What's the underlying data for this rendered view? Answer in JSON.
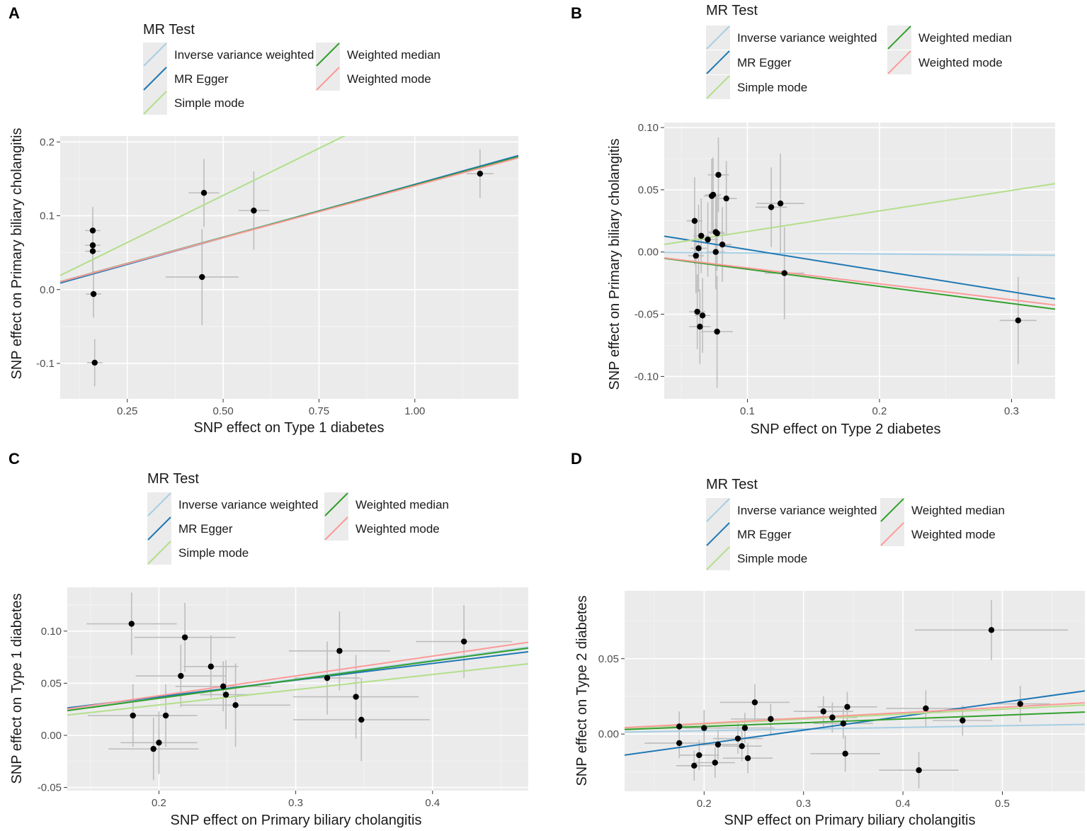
{
  "figure": {
    "legend": {
      "title": "MR Test",
      "entries": [
        {
          "name": "Inverse variance weighted",
          "color": "#a6cee3"
        },
        {
          "name": "MR Egger",
          "color": "#1f78b4"
        },
        {
          "name": "Simple mode",
          "color": "#b2df8a"
        },
        {
          "name": "Weighted median",
          "color": "#33a02c"
        },
        {
          "name": "Weighted mode",
          "color": "#fb9a99"
        }
      ]
    },
    "colors": {
      "panel_bg": "#ebebeb",
      "grid": "#ffffff",
      "point": "#000000",
      "errorbar": "#bdbdbd"
    }
  },
  "chart_data": [
    {
      "panel": "A",
      "type": "scatter",
      "xlabel": "SNP effect on  Type 1 diabetes",
      "ylabel": "SNP effect on Primary biliary cholangitis",
      "xlim": [
        0.075,
        1.27
      ],
      "ylim": [
        -0.148,
        0.208
      ],
      "xticks": [
        0.25,
        0.5,
        0.75,
        1.0
      ],
      "xtick_labels": [
        "0.25",
        "0.50",
        "0.75",
        "1.00"
      ],
      "yticks": [
        -0.1,
        0.0,
        0.1,
        0.2
      ],
      "ytick_labels": [
        "-0.1",
        "0.0",
        "0.1",
        "0.2"
      ],
      "points": [
        {
          "x": 0.16,
          "y": 0.08,
          "xse": 0.02,
          "yse": 0.032
        },
        {
          "x": 0.16,
          "y": 0.06,
          "xse": 0.02,
          "yse": 0.032
        },
        {
          "x": 0.16,
          "y": 0.052,
          "xse": 0.02,
          "yse": 0.032
        },
        {
          "x": 0.162,
          "y": -0.006,
          "xse": 0.02,
          "yse": 0.032
        },
        {
          "x": 0.165,
          "y": -0.099,
          "xse": 0.02,
          "yse": 0.032
        },
        {
          "x": 0.45,
          "y": 0.131,
          "xse": 0.04,
          "yse": 0.046
        },
        {
          "x": 0.445,
          "y": 0.017,
          "xse": 0.095,
          "yse": 0.065
        },
        {
          "x": 0.58,
          "y": 0.107,
          "xse": 0.04,
          "yse": 0.053
        },
        {
          "x": 1.17,
          "y": 0.157,
          "xse": 0.035,
          "yse": 0.033
        }
      ],
      "lines": [
        {
          "name": "Inverse variance weighted",
          "slope": 0.1425,
          "intercept": 0.0
        },
        {
          "name": "MR Egger",
          "slope": 0.1445,
          "intercept": -0.002
        },
        {
          "name": "Simple mode",
          "slope": 0.255,
          "intercept": 0.0
        },
        {
          "name": "Weighted median",
          "slope": 0.1415,
          "intercept": 0.0
        },
        {
          "name": "Weighted mode",
          "slope": 0.1405,
          "intercept": 0.0
        }
      ]
    },
    {
      "panel": "B",
      "type": "scatter",
      "xlabel": "SNP effect on  Type 2 diabetes",
      "ylabel": "SNP effect on Primary biliary cholangitis",
      "xlim": [
        0.037,
        0.333
      ],
      "ylim": [
        -0.118,
        0.104
      ],
      "xticks": [
        0.1,
        0.2,
        0.3
      ],
      "xtick_labels": [
        "0.1",
        "0.2",
        "0.3"
      ],
      "yticks": [
        -0.1,
        -0.05,
        0.0,
        0.05,
        0.1
      ],
      "ytick_labels": [
        "-0.10",
        "-0.05",
        "0.00",
        "0.05",
        "0.10"
      ],
      "points": [
        {
          "x": 0.06,
          "y": 0.025,
          "xse": 0.006,
          "yse": 0.035
        },
        {
          "x": 0.061,
          "y": -0.003,
          "xse": 0.006,
          "yse": 0.03
        },
        {
          "x": 0.062,
          "y": -0.048,
          "xse": 0.006,
          "yse": 0.03
        },
        {
          "x": 0.063,
          "y": 0.003,
          "xse": 0.006,
          "yse": 0.035
        },
        {
          "x": 0.064,
          "y": -0.06,
          "xse": 0.008,
          "yse": 0.03
        },
        {
          "x": 0.065,
          "y": 0.013,
          "xse": 0.006,
          "yse": 0.03
        },
        {
          "x": 0.066,
          "y": -0.051,
          "xse": 0.006,
          "yse": 0.03
        },
        {
          "x": 0.07,
          "y": 0.01,
          "xse": 0.008,
          "yse": 0.03
        },
        {
          "x": 0.073,
          "y": 0.045,
          "xse": 0.006,
          "yse": 0.03
        },
        {
          "x": 0.074,
          "y": 0.046,
          "xse": 0.006,
          "yse": 0.03
        },
        {
          "x": 0.076,
          "y": 0.016,
          "xse": 0.006,
          "yse": 0.03
        },
        {
          "x": 0.077,
          "y": 0.015,
          "xse": 0.006,
          "yse": 0.03
        },
        {
          "x": 0.076,
          "y": 0.0,
          "xse": 0.007,
          "yse": 0.03
        },
        {
          "x": 0.078,
          "y": 0.062,
          "xse": 0.008,
          "yse": 0.03
        },
        {
          "x": 0.081,
          "y": 0.006,
          "xse": 0.007,
          "yse": 0.03
        },
        {
          "x": 0.077,
          "y": -0.064,
          "xse": 0.012,
          "yse": 0.045
        },
        {
          "x": 0.084,
          "y": 0.043,
          "xse": 0.008,
          "yse": 0.03
        },
        {
          "x": 0.118,
          "y": 0.036,
          "xse": 0.012,
          "yse": 0.032
        },
        {
          "x": 0.125,
          "y": 0.039,
          "xse": 0.018,
          "yse": 0.04
        },
        {
          "x": 0.128,
          "y": -0.017,
          "xse": 0.015,
          "yse": 0.037
        },
        {
          "x": 0.305,
          "y": -0.055,
          "xse": 0.014,
          "yse": 0.035
        }
      ],
      "lines": [
        {
          "name": "Inverse variance weighted",
          "slope": -0.008,
          "intercept": 0.0
        },
        {
          "name": "MR Egger",
          "slope": -0.17,
          "intercept": 0.019
        },
        {
          "name": "Simple mode",
          "slope": 0.165,
          "intercept": 0.0
        },
        {
          "name": "Weighted median",
          "slope": -0.138,
          "intercept": 0.0
        },
        {
          "name": "Weighted mode",
          "slope": -0.128,
          "intercept": 0.0
        }
      ]
    },
    {
      "panel": "C",
      "type": "scatter",
      "xlabel": "SNP effect on Primary biliary cholangitis",
      "ylabel": "SNP effect on Type 1 diabetes",
      "xlim": [
        0.133,
        0.47
      ],
      "ylim": [
        -0.053,
        0.142
      ],
      "xticks": [
        0.2,
        0.3,
        0.4
      ],
      "xtick_labels": [
        "0.2",
        "0.3",
        "0.4"
      ],
      "yticks": [
        -0.05,
        0.0,
        0.05,
        0.1
      ],
      "ytick_labels": [
        "-0.05",
        "0.00",
        "0.05",
        "0.10"
      ],
      "points": [
        {
          "x": 0.18,
          "y": 0.107,
          "xse": 0.033,
          "yse": 0.03
        },
        {
          "x": 0.181,
          "y": 0.019,
          "xse": 0.033,
          "yse": 0.03
        },
        {
          "x": 0.196,
          "y": -0.013,
          "xse": 0.033,
          "yse": 0.03
        },
        {
          "x": 0.2,
          "y": -0.007,
          "xse": 0.028,
          "yse": 0.03
        },
        {
          "x": 0.205,
          "y": 0.019,
          "xse": 0.023,
          "yse": 0.03
        },
        {
          "x": 0.216,
          "y": 0.057,
          "xse": 0.033,
          "yse": 0.03
        },
        {
          "x": 0.219,
          "y": 0.094,
          "xse": 0.037,
          "yse": 0.033
        },
        {
          "x": 0.238,
          "y": 0.066,
          "xse": 0.02,
          "yse": 0.03
        },
        {
          "x": 0.247,
          "y": 0.047,
          "xse": 0.035,
          "yse": 0.024
        },
        {
          "x": 0.249,
          "y": 0.039,
          "xse": 0.019,
          "yse": 0.033
        },
        {
          "x": 0.256,
          "y": 0.029,
          "xse": 0.04,
          "yse": 0.04
        },
        {
          "x": 0.323,
          "y": 0.055,
          "xse": 0.024,
          "yse": 0.035
        },
        {
          "x": 0.332,
          "y": 0.081,
          "xse": 0.037,
          "yse": 0.038
        },
        {
          "x": 0.344,
          "y": 0.037,
          "xse": 0.046,
          "yse": 0.04
        },
        {
          "x": 0.348,
          "y": 0.015,
          "xse": 0.05,
          "yse": 0.04
        },
        {
          "x": 0.423,
          "y": 0.09,
          "xse": 0.035,
          "yse": 0.035
        }
      ],
      "lines": [
        {
          "name": "Inverse variance weighted",
          "slope": 0.18,
          "intercept": 0.0
        },
        {
          "name": "MR Egger",
          "slope": 0.16,
          "intercept": 0.005
        },
        {
          "name": "Simple mode",
          "slope": 0.146,
          "intercept": 0.0
        },
        {
          "name": "Weighted median",
          "slope": 0.178,
          "intercept": 0.0
        },
        {
          "name": "Weighted mode",
          "slope": 0.19,
          "intercept": 0.0
        }
      ]
    },
    {
      "panel": "D",
      "type": "scatter",
      "xlabel": "SNP effect on Primary biliary cholangitis",
      "ylabel": "SNP effect on Type 2 diabetes",
      "xlim": [
        0.12,
        0.583
      ],
      "ylim": [
        -0.038,
        0.095
      ],
      "xticks": [
        0.2,
        0.3,
        0.4,
        0.5
      ],
      "xtick_labels": [
        "0.2",
        "0.3",
        "0.4",
        "0.5"
      ],
      "yticks": [
        0.0,
        0.05
      ],
      "ytick_labels": [
        "0.00",
        "0.05"
      ],
      "points": [
        {
          "x": 0.175,
          "y": 0.005,
          "xse": 0.03,
          "yse": 0.01
        },
        {
          "x": 0.175,
          "y": -0.006,
          "xse": 0.035,
          "yse": 0.01
        },
        {
          "x": 0.19,
          "y": -0.021,
          "xse": 0.018,
          "yse": 0.01
        },
        {
          "x": 0.195,
          "y": -0.014,
          "xse": 0.02,
          "yse": 0.01
        },
        {
          "x": 0.2,
          "y": 0.004,
          "xse": 0.02,
          "yse": 0.012
        },
        {
          "x": 0.211,
          "y": -0.019,
          "xse": 0.02,
          "yse": 0.01
        },
        {
          "x": 0.214,
          "y": -0.007,
          "xse": 0.02,
          "yse": 0.01
        },
        {
          "x": 0.234,
          "y": -0.003,
          "xse": 0.025,
          "yse": 0.01
        },
        {
          "x": 0.238,
          "y": -0.008,
          "xse": 0.02,
          "yse": 0.01
        },
        {
          "x": 0.241,
          "y": 0.004,
          "xse": 0.03,
          "yse": 0.01
        },
        {
          "x": 0.244,
          "y": -0.016,
          "xse": 0.025,
          "yse": 0.01
        },
        {
          "x": 0.251,
          "y": 0.021,
          "xse": 0.035,
          "yse": 0.012
        },
        {
          "x": 0.267,
          "y": 0.01,
          "xse": 0.04,
          "yse": 0.01
        },
        {
          "x": 0.32,
          "y": 0.015,
          "xse": 0.03,
          "yse": 0.01
        },
        {
          "x": 0.329,
          "y": 0.011,
          "xse": 0.025,
          "yse": 0.01
        },
        {
          "x": 0.34,
          "y": 0.007,
          "xse": 0.03,
          "yse": 0.01
        },
        {
          "x": 0.342,
          "y": -0.013,
          "xse": 0.035,
          "yse": 0.012
        },
        {
          "x": 0.344,
          "y": 0.018,
          "xse": 0.03,
          "yse": 0.01
        },
        {
          "x": 0.416,
          "y": -0.024,
          "xse": 0.04,
          "yse": 0.012
        },
        {
          "x": 0.423,
          "y": 0.017,
          "xse": 0.04,
          "yse": 0.012
        },
        {
          "x": 0.46,
          "y": 0.009,
          "xse": 0.03,
          "yse": 0.01
        },
        {
          "x": 0.489,
          "y": 0.069,
          "xse": 0.077,
          "yse": 0.02
        },
        {
          "x": 0.518,
          "y": 0.02,
          "xse": 0.03,
          "yse": 0.012
        }
      ],
      "lines": [
        {
          "name": "Inverse variance weighted",
          "slope": 0.011,
          "intercept": 0.0
        },
        {
          "name": "MR Egger",
          "slope": 0.092,
          "intercept": -0.025
        },
        {
          "name": "Simple mode",
          "slope": 0.033,
          "intercept": 0.0
        },
        {
          "name": "Weighted median",
          "slope": 0.025,
          "intercept": 0.0
        },
        {
          "name": "Weighted mode",
          "slope": 0.0355,
          "intercept": 0.0
        }
      ]
    }
  ]
}
